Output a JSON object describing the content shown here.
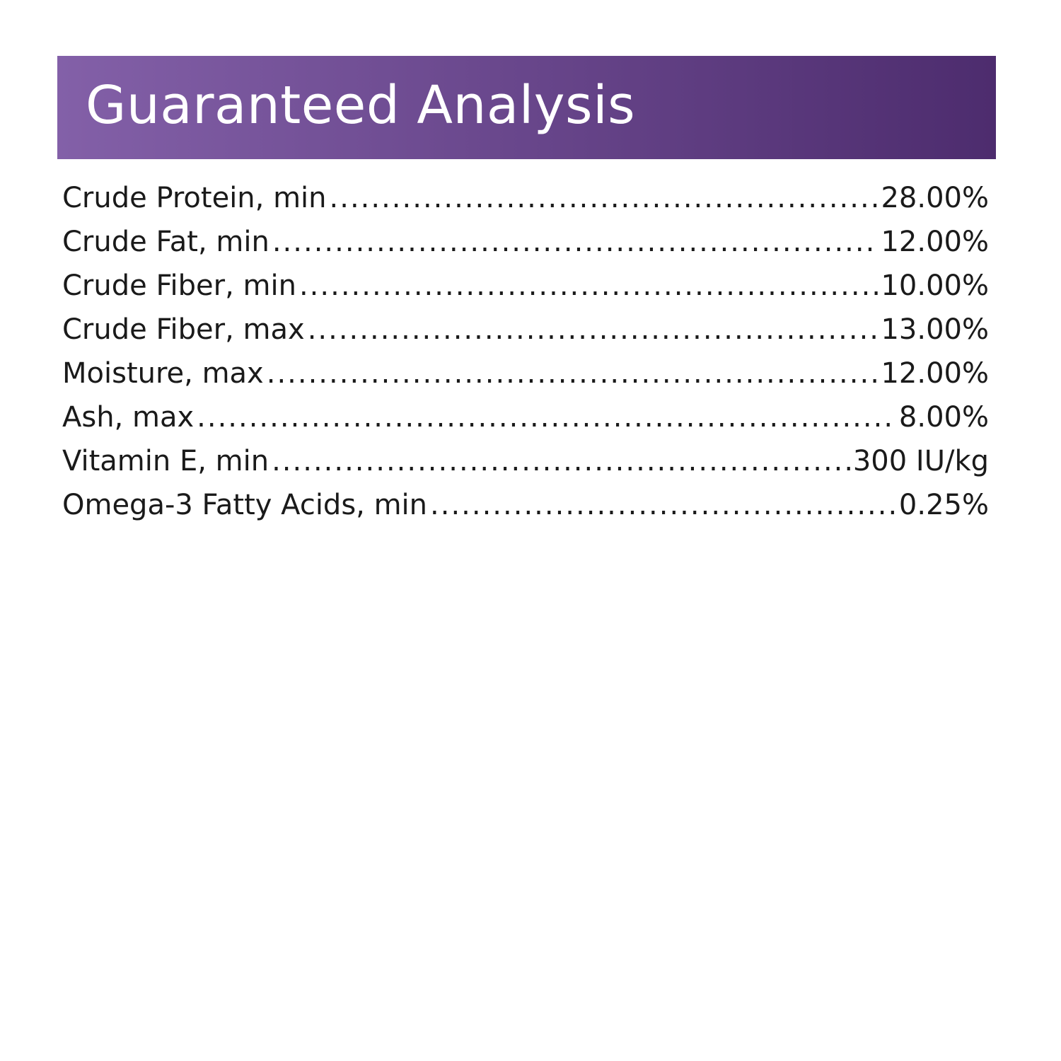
{
  "header": {
    "title": "Guaranteed Analysis",
    "band_color_start": "#8360a8",
    "band_color_end": "#4d2c6e"
  },
  "analysis": [
    {
      "label": "Crude Protein, min",
      "value": "28.00%"
    },
    {
      "label": "Crude Fat, min",
      "value": "12.00%"
    },
    {
      "label": "Crude Fiber, min",
      "value": "10.00%"
    },
    {
      "label": "Crude Fiber, max",
      "value": "13.00%"
    },
    {
      "label": "Moisture, max",
      "value": "12.00%"
    },
    {
      "label": "Ash, max",
      "value": "8.00%"
    },
    {
      "label": "Vitamin E, min",
      "value": "300 IU/kg"
    },
    {
      "label": "Omega-3 Fatty Acids, min",
      "value": "0.25%"
    }
  ]
}
